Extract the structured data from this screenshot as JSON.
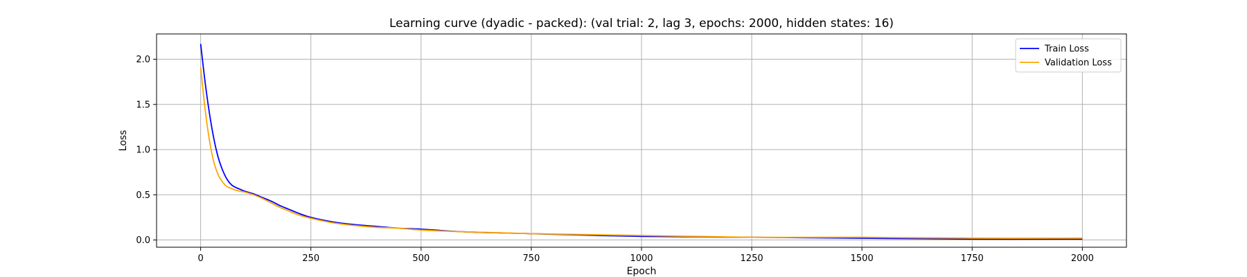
{
  "chart_data": {
    "type": "line",
    "title": "Learning curve (dyadic - packed): (val trial: 2, lag 3, epochs: 2000, hidden states: 16)",
    "xlabel": "Epoch",
    "ylabel": "Loss",
    "xlim": [
      -100,
      2100
    ],
    "ylim": [
      -0.08,
      2.28
    ],
    "xticks": [
      0,
      250,
      500,
      750,
      1000,
      1250,
      1500,
      1750,
      2000
    ],
    "yticks": [
      0.0,
      0.5,
      1.0,
      1.5,
      2.0
    ],
    "xtick_labels": [
      "0",
      "250",
      "500",
      "750",
      "1000",
      "1250",
      "1500",
      "1750",
      "2000"
    ],
    "ytick_labels": [
      "0.0",
      "0.5",
      "1.0",
      "1.5",
      "2.0"
    ],
    "grid": true,
    "legend_position": "top-right",
    "series": [
      {
        "name": "Train Loss",
        "color": "#0000ff",
        "x": [
          0,
          10,
          20,
          30,
          40,
          50,
          60,
          70,
          80,
          90,
          100,
          120,
          140,
          160,
          180,
          200,
          220,
          250,
          300,
          350,
          400,
          450,
          500,
          600,
          750,
          1000,
          1250,
          1500,
          1750,
          2000
        ],
        "y": [
          2.17,
          1.75,
          1.4,
          1.12,
          0.91,
          0.77,
          0.67,
          0.61,
          0.58,
          0.56,
          0.54,
          0.51,
          0.47,
          0.43,
          0.38,
          0.34,
          0.3,
          0.25,
          0.2,
          0.17,
          0.15,
          0.13,
          0.12,
          0.09,
          0.07,
          0.04,
          0.03,
          0.02,
          0.01,
          0.01
        ]
      },
      {
        "name": "Validation Loss",
        "color": "#ffa500",
        "x": [
          0,
          10,
          20,
          30,
          40,
          50,
          60,
          70,
          80,
          90,
          100,
          120,
          140,
          160,
          180,
          200,
          220,
          250,
          300,
          350,
          400,
          450,
          500,
          600,
          750,
          1000,
          1250,
          1500,
          1750,
          2000
        ],
        "y": [
          1.91,
          1.45,
          1.1,
          0.86,
          0.72,
          0.64,
          0.59,
          0.57,
          0.55,
          0.54,
          0.53,
          0.5,
          0.46,
          0.41,
          0.36,
          0.32,
          0.28,
          0.24,
          0.19,
          0.16,
          0.14,
          0.13,
          0.11,
          0.09,
          0.07,
          0.05,
          0.03,
          0.03,
          0.02,
          0.02
        ]
      }
    ]
  }
}
